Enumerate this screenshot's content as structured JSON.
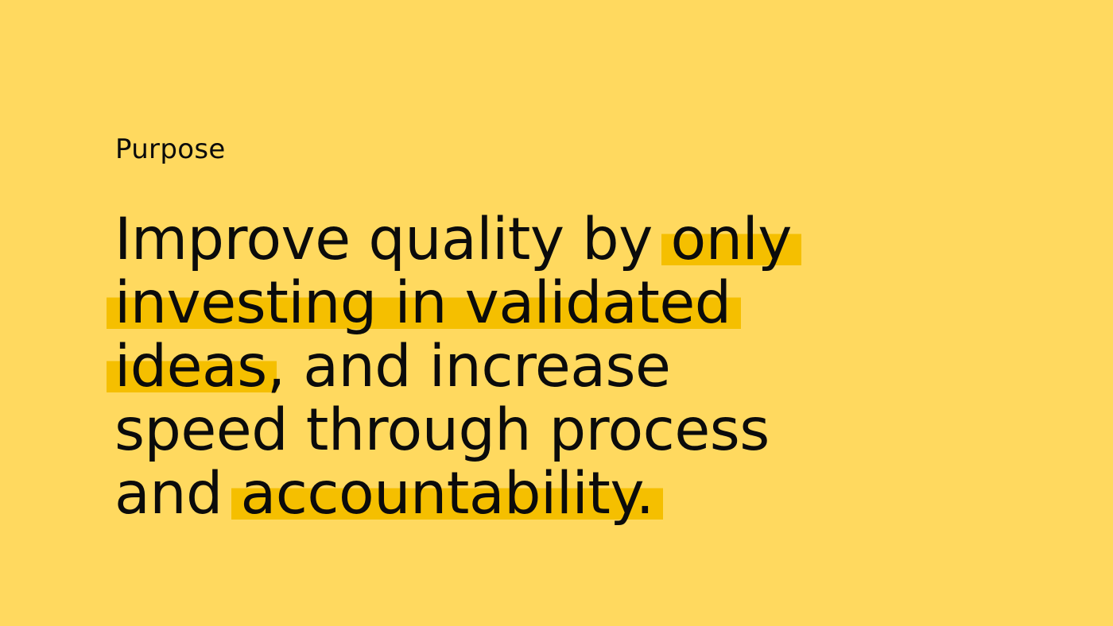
{
  "colors": {
    "background": "#ffd95f",
    "highlight": "#f5bf00",
    "text": "#0b0b0b"
  },
  "eyebrow": "Purpose",
  "statement": {
    "line1_plain": "Improve quality by ",
    "line1_hl": "only",
    "line2_hl": "investing in validated",
    "line3_hl": "ideas",
    "line3_plain": ", and increase",
    "line4_plain": "speed through process",
    "line5_plain": "and ",
    "line5_hl": "accountability."
  }
}
